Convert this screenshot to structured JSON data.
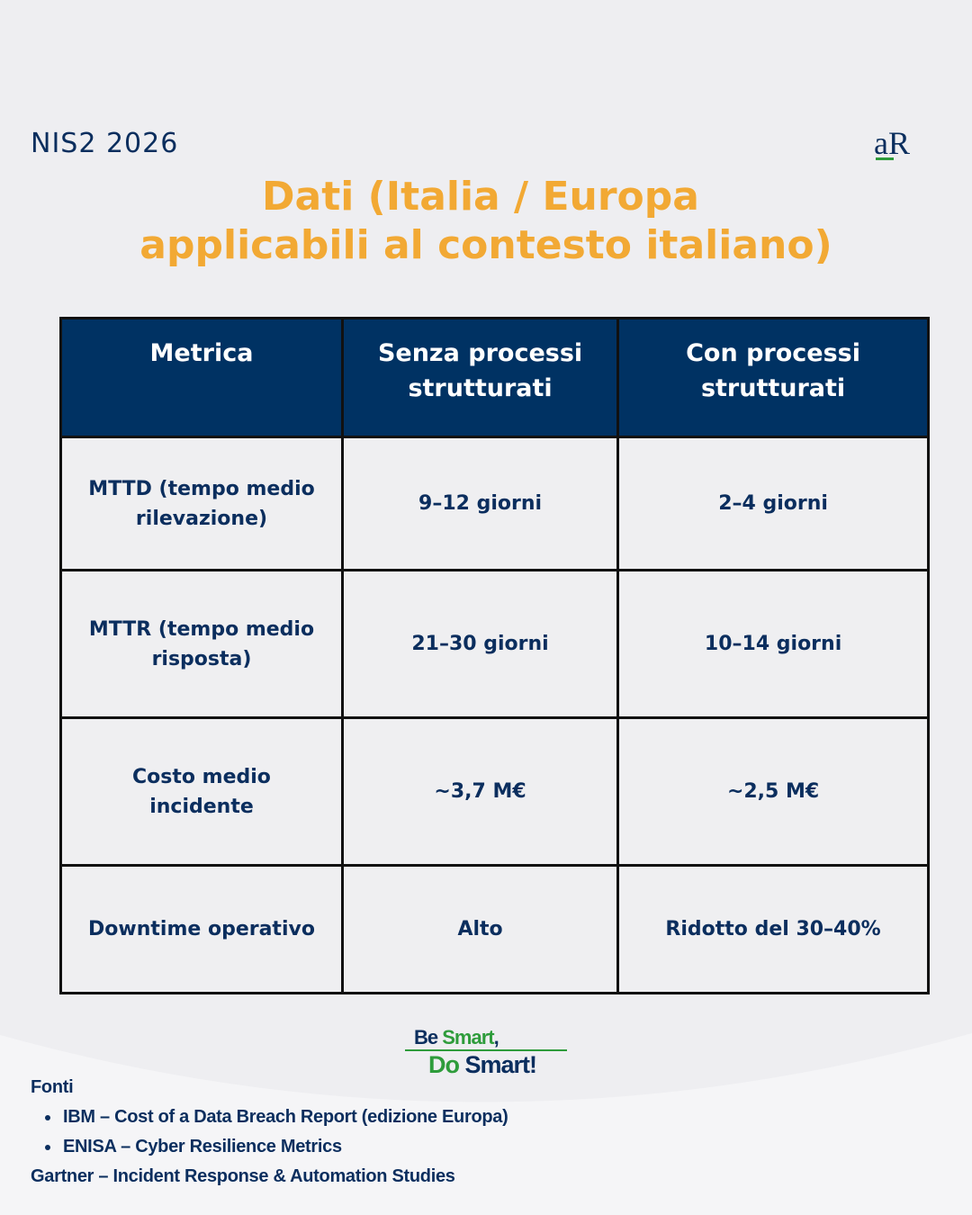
{
  "header": {
    "eyebrow": "NIS2 2026",
    "logo_text": "aR",
    "title_line1": "Dati (Italia / Europa",
    "title_line2": "applicabili al contesto italiano)"
  },
  "table": {
    "headers": [
      "Metrica",
      "Senza processi strutturati",
      "Con processi strutturati"
    ],
    "rows": [
      [
        "MTTD (tempo medio rilevazione)",
        "9–12 giorni",
        "2–4 giorni"
      ],
      [
        "MTTR (tempo medio risposta)",
        "21–30 giorni",
        "10–14 giorni"
      ],
      [
        "Costo medio incidente",
        "~3,7 M€",
        "~2,5 M€"
      ],
      [
        "Downtime operativo",
        "Alto",
        "Ridotto del 30–40%"
      ]
    ]
  },
  "slogan": {
    "be": "Be",
    "smart1": "Smart",
    "comma": ",",
    "do": "Do",
    "smart2": "Smart!"
  },
  "sources": {
    "heading": "Fonti",
    "items": [
      "IBM – Cost of a Data Breach Report (edizione Europa)",
      "ENISA – Cyber Resilience Metrics"
    ],
    "footer": "Gartner – Incident Response & Automation Studies"
  },
  "colors": {
    "title": "#f2a934",
    "navy": "#0b2e5e",
    "header_bg": "#003263",
    "green": "#2e9c3b",
    "background": "#f5f5f7"
  }
}
